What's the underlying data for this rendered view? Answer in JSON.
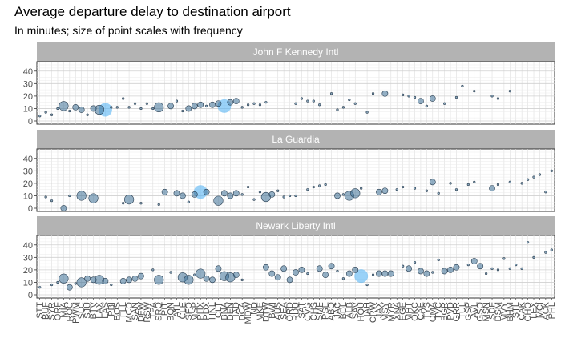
{
  "chart_data": {
    "type": "scatter",
    "title": "Average departure delay to destination airport",
    "subtitle": "In minutes; size of point scales with frequency",
    "xlabel": "",
    "ylabel": "",
    "ylim": [
      0,
      45
    ],
    "y_ticks": [
      0,
      10,
      20,
      30,
      40
    ],
    "grid": true,
    "categories": [
      "STT",
      "BUF",
      "SYR",
      "ORF",
      "MIA",
      "ROC",
      "PWM",
      "SLC",
      "SJU",
      "BTV",
      "LAX",
      "LAS",
      "PBI",
      "BOS",
      "FLL",
      "MCO",
      "SAN",
      "DFW",
      "RSW",
      "TPA",
      "SRQ",
      "PIT",
      "BQN",
      "ATL",
      "CLE",
      "SFO",
      "MSP",
      "PHX",
      "PDX",
      "HNL",
      "CLT",
      "BNA",
      "DEN",
      "IAD",
      "DCA",
      "MDW",
      "IND",
      "MKE",
      "DTW",
      "BWI",
      "AUS",
      "SEA",
      "ORD",
      "RDU",
      "SAT",
      "CVG",
      "CHS",
      "SMF",
      "PSE",
      "ABQ",
      "JAC",
      "BDL",
      "ALB",
      "SAV",
      "HOU",
      "IAH",
      "CRW",
      "JAX",
      "MSY",
      "MYR",
      "XNA",
      "EGE",
      "MHT",
      "OKC",
      "CAE",
      "TYS",
      "OMA",
      "TVC",
      "BGR",
      "PVD",
      "GRR",
      "TUL",
      "GSP",
      "AVL",
      "GSO",
      "MSN",
      "SDF",
      "DSM",
      "MVY",
      "BHM",
      "STL",
      "CAK",
      "CHO",
      "LEX",
      "MCI",
      "ACK",
      "PHL"
    ],
    "series": [
      {
        "name": "John F Kennedy Intl",
        "points": [
          {
            "x": "STT",
            "y": 4,
            "n": 1
          },
          {
            "x": "BUF",
            "y": 7,
            "n": 1
          },
          {
            "x": "SYR",
            "y": 5,
            "n": 1
          },
          {
            "x": "ROC",
            "y": 8,
            "n": 1
          },
          {
            "x": "MIA",
            "y": 12,
            "n": 3
          },
          {
            "x": "ORF",
            "y": 10,
            "n": 1
          },
          {
            "x": "PWM",
            "y": 11,
            "n": 2
          },
          {
            "x": "SLC",
            "y": 9,
            "n": 2
          },
          {
            "x": "SJU",
            "y": 5,
            "n": 1
          },
          {
            "x": "BTV",
            "y": 10,
            "n": 2
          },
          {
            "x": "LAX",
            "y": 9,
            "n": 3
          },
          {
            "x": "LAS",
            "y": 9,
            "n": 4
          },
          {
            "x": "PBI",
            "y": 11,
            "n": 1
          },
          {
            "x": "BOS",
            "y": 11,
            "n": 1
          },
          {
            "x": "FLL",
            "y": 18,
            "n": 1
          },
          {
            "x": "MCO",
            "y": 11,
            "n": 1
          },
          {
            "x": "SAN",
            "y": 14,
            "n": 1
          },
          {
            "x": "DFW",
            "y": 10,
            "n": 1
          },
          {
            "x": "RSW",
            "y": 14,
            "n": 1
          },
          {
            "x": "TPA",
            "y": 10,
            "n": 1
          },
          {
            "x": "SRQ",
            "y": 11,
            "n": 3
          },
          {
            "x": "BQN",
            "y": 12,
            "n": 2
          },
          {
            "x": "ATL",
            "y": 16,
            "n": 1
          },
          {
            "x": "CLE",
            "y": 8,
            "n": 1
          },
          {
            "x": "SFO",
            "y": 10,
            "n": 2
          },
          {
            "x": "MSP",
            "y": 12,
            "n": 2
          },
          {
            "x": "PHX",
            "y": 13,
            "n": 2
          },
          {
            "x": "PDX",
            "y": 12,
            "n": 1
          },
          {
            "x": "HNL",
            "y": 13,
            "n": 2
          },
          {
            "x": "CLT",
            "y": 14,
            "n": 2
          },
          {
            "x": "BNA",
            "y": 12,
            "n": 4
          },
          {
            "x": "DEN",
            "y": 15,
            "n": 2
          },
          {
            "x": "IAD",
            "y": 16,
            "n": 2
          },
          {
            "x": "DCA",
            "y": 11,
            "n": 1
          },
          {
            "x": "MDW",
            "y": 13,
            "n": 1
          },
          {
            "x": "IND",
            "y": 14,
            "n": 1
          },
          {
            "x": "MKE",
            "y": 13,
            "n": 1
          },
          {
            "x": "DTW",
            "y": 15,
            "n": 1
          },
          {
            "x": "RDU",
            "y": 14,
            "n": 1
          },
          {
            "x": "SAT",
            "y": 18,
            "n": 1
          },
          {
            "x": "CVG",
            "y": 16,
            "n": 1
          },
          {
            "x": "CHS",
            "y": 16,
            "n": 1
          },
          {
            "x": "SMF",
            "y": 13,
            "n": 1
          },
          {
            "x": "ABQ",
            "y": 22,
            "n": 1
          },
          {
            "x": "BDL",
            "y": 11,
            "n": 1
          },
          {
            "x": "JAC",
            "y": 9,
            "n": 1
          },
          {
            "x": "SAV",
            "y": 14,
            "n": 1
          },
          {
            "x": "ALB",
            "y": 17,
            "n": 1
          },
          {
            "x": "IAH",
            "y": 7,
            "n": 1
          },
          {
            "x": "CRW",
            "y": 22,
            "n": 1
          },
          {
            "x": "MSY",
            "y": 22,
            "n": 2
          },
          {
            "x": "EGE",
            "y": 21,
            "n": 1
          },
          {
            "x": "MHT",
            "y": 20,
            "n": 1
          },
          {
            "x": "OKC",
            "y": 19,
            "n": 1
          },
          {
            "x": "CAE",
            "y": 16,
            "n": 2
          },
          {
            "x": "TYS",
            "y": 12,
            "n": 1
          },
          {
            "x": "OMA",
            "y": 18,
            "n": 2
          },
          {
            "x": "BGR",
            "y": 14,
            "n": 1
          },
          {
            "x": "GRR",
            "y": 19,
            "n": 1
          },
          {
            "x": "TUL",
            "y": 28,
            "n": 1
          },
          {
            "x": "AVL",
            "y": 24,
            "n": 1
          },
          {
            "x": "SDF",
            "y": 20,
            "n": 1
          },
          {
            "x": "DSM",
            "y": 18,
            "n": 1
          },
          {
            "x": "BHM",
            "y": 24,
            "n": 1
          }
        ]
      },
      {
        "name": "La Guardia",
        "points": [
          {
            "x": "BUF",
            "y": 9,
            "n": 1
          },
          {
            "x": "SYR",
            "y": 6,
            "n": 1
          },
          {
            "x": "MIA",
            "y": 0,
            "n": 2
          },
          {
            "x": "ROC",
            "y": 10,
            "n": 1
          },
          {
            "x": "SLC",
            "y": 10,
            "n": 3
          },
          {
            "x": "BTV",
            "y": 8,
            "n": 3
          },
          {
            "x": "FLL",
            "y": 4,
            "n": 1
          },
          {
            "x": "MCO",
            "y": 7,
            "n": 3
          },
          {
            "x": "DFW",
            "y": 4,
            "n": 1
          },
          {
            "x": "SRQ",
            "y": 3,
            "n": 1
          },
          {
            "x": "PIT",
            "y": 13,
            "n": 2
          },
          {
            "x": "ATL",
            "y": 12,
            "n": 2
          },
          {
            "x": "CLE",
            "y": 10,
            "n": 2
          },
          {
            "x": "SFO",
            "y": 5,
            "n": 1
          },
          {
            "x": "MSP",
            "y": 11,
            "n": 2
          },
          {
            "x": "PHX",
            "y": 13,
            "n": 4
          },
          {
            "x": "PDX",
            "y": 13,
            "n": 2
          },
          {
            "x": "CLT",
            "y": 6,
            "n": 3
          },
          {
            "x": "BNA",
            "y": 12,
            "n": 2
          },
          {
            "x": "DEN",
            "y": 10,
            "n": 2
          },
          {
            "x": "IAD",
            "y": 12,
            "n": 2
          },
          {
            "x": "DCA",
            "y": 11,
            "n": 1
          },
          {
            "x": "MDW",
            "y": 17,
            "n": 1
          },
          {
            "x": "IND",
            "y": 7,
            "n": 1
          },
          {
            "x": "MKE",
            "y": 13,
            "n": 1
          },
          {
            "x": "DTW",
            "y": 9,
            "n": 3
          },
          {
            "x": "BWI",
            "y": 11,
            "n": 2
          },
          {
            "x": "AUS",
            "y": 14,
            "n": 1
          },
          {
            "x": "SEA",
            "y": 9,
            "n": 1
          },
          {
            "x": "ORD",
            "y": 10,
            "n": 1
          },
          {
            "x": "RDU",
            "y": 10,
            "n": 1
          },
          {
            "x": "CVG",
            "y": 15,
            "n": 1
          },
          {
            "x": "CHS",
            "y": 17,
            "n": 1
          },
          {
            "x": "SMF",
            "y": 18,
            "n": 1
          },
          {
            "x": "PSE",
            "y": 19,
            "n": 1
          },
          {
            "x": "JAC",
            "y": 10,
            "n": 2
          },
          {
            "x": "BDL",
            "y": 11,
            "n": 1
          },
          {
            "x": "ALB",
            "y": 10,
            "n": 3
          },
          {
            "x": "SAV",
            "y": 12,
            "n": 3
          },
          {
            "x": "HOU",
            "y": 16,
            "n": 1
          },
          {
            "x": "JAX",
            "y": 13,
            "n": 2
          },
          {
            "x": "MSY",
            "y": 14,
            "n": 2
          },
          {
            "x": "XNA",
            "y": 15,
            "n": 1
          },
          {
            "x": "EGE",
            "y": 17,
            "n": 1
          },
          {
            "x": "OKC",
            "y": 16,
            "n": 1
          },
          {
            "x": "TYS",
            "y": 14,
            "n": 1
          },
          {
            "x": "OMA",
            "y": 21,
            "n": 2
          },
          {
            "x": "TVC",
            "y": 12,
            "n": 1
          },
          {
            "x": "PVD",
            "y": 20,
            "n": 1
          },
          {
            "x": "GRR",
            "y": 15,
            "n": 1
          },
          {
            "x": "GSP",
            "y": 19,
            "n": 1
          },
          {
            "x": "AVL",
            "y": 21,
            "n": 1
          },
          {
            "x": "SDF",
            "y": 16,
            "n": 2
          },
          {
            "x": "DSM",
            "y": 19,
            "n": 1
          },
          {
            "x": "BHM",
            "y": 21,
            "n": 1
          },
          {
            "x": "CAK",
            "y": 20,
            "n": 1
          },
          {
            "x": "CHO",
            "y": 23,
            "n": 1
          },
          {
            "x": "LEX",
            "y": 25,
            "n": 1
          },
          {
            "x": "MCI",
            "y": 27,
            "n": 1
          },
          {
            "x": "ACK",
            "y": 13,
            "n": 1
          },
          {
            "x": "PHL",
            "y": 30,
            "n": 1
          }
        ]
      },
      {
        "name": "Newark Liberty Intl",
        "points": [
          {
            "x": "STT",
            "y": 6,
            "n": 1
          },
          {
            "x": "SYR",
            "y": 8,
            "n": 1
          },
          {
            "x": "ORF",
            "y": 10,
            "n": 1
          },
          {
            "x": "MIA",
            "y": 13,
            "n": 3
          },
          {
            "x": "ROC",
            "y": 6,
            "n": 2
          },
          {
            "x": "PWM",
            "y": 9,
            "n": 1
          },
          {
            "x": "SLC",
            "y": 10,
            "n": 3
          },
          {
            "x": "SJU",
            "y": 13,
            "n": 2
          },
          {
            "x": "BTV",
            "y": 12,
            "n": 2
          },
          {
            "x": "LAX",
            "y": 12,
            "n": 3
          },
          {
            "x": "LAS",
            "y": 11,
            "n": 2
          },
          {
            "x": "PBI",
            "y": 8,
            "n": 1
          },
          {
            "x": "FLL",
            "y": 11,
            "n": 2
          },
          {
            "x": "MCO",
            "y": 12,
            "n": 2
          },
          {
            "x": "SAN",
            "y": 13,
            "n": 2
          },
          {
            "x": "DFW",
            "y": 15,
            "n": 2
          },
          {
            "x": "TPA",
            "y": 20,
            "n": 1
          },
          {
            "x": "SRQ",
            "y": 12,
            "n": 3
          },
          {
            "x": "BQN",
            "y": 18,
            "n": 1
          },
          {
            "x": "CLE",
            "y": 14,
            "n": 3
          },
          {
            "x": "SFO",
            "y": 12,
            "n": 3
          },
          {
            "x": "MSP",
            "y": 16,
            "n": 1
          },
          {
            "x": "PHX",
            "y": 17,
            "n": 3
          },
          {
            "x": "PDX",
            "y": 13,
            "n": 2
          },
          {
            "x": "HNL",
            "y": 12,
            "n": 2
          },
          {
            "x": "CLT",
            "y": 21,
            "n": 2
          },
          {
            "x": "BNA",
            "y": 15,
            "n": 3
          },
          {
            "x": "DEN",
            "y": 14,
            "n": 3
          },
          {
            "x": "IAD",
            "y": 16,
            "n": 2
          },
          {
            "x": "DCA",
            "y": 12,
            "n": 1
          },
          {
            "x": "DTW",
            "y": 22,
            "n": 2
          },
          {
            "x": "BWI",
            "y": 17,
            "n": 2
          },
          {
            "x": "AUS",
            "y": 14,
            "n": 2
          },
          {
            "x": "SEA",
            "y": 21,
            "n": 2
          },
          {
            "x": "ORD",
            "y": 12,
            "n": 2
          },
          {
            "x": "RDU",
            "y": 18,
            "n": 2
          },
          {
            "x": "SAT",
            "y": 20,
            "n": 2
          },
          {
            "x": "CVG",
            "y": 17,
            "n": 1
          },
          {
            "x": "SMF",
            "y": 21,
            "n": 2
          },
          {
            "x": "PSE",
            "y": 16,
            "n": 2
          },
          {
            "x": "ABQ",
            "y": 23,
            "n": 2
          },
          {
            "x": "JAC",
            "y": 19,
            "n": 1
          },
          {
            "x": "BDL",
            "y": 13,
            "n": 1
          },
          {
            "x": "ALB",
            "y": 17,
            "n": 2
          },
          {
            "x": "SAV",
            "y": 20,
            "n": 2
          },
          {
            "x": "HOU",
            "y": 15,
            "n": 4
          },
          {
            "x": "IAH",
            "y": 8,
            "n": 1
          },
          {
            "x": "CRW",
            "y": 16,
            "n": 1
          },
          {
            "x": "JAX",
            "y": 17,
            "n": 2
          },
          {
            "x": "MSY",
            "y": 17,
            "n": 2
          },
          {
            "x": "MYR",
            "y": 17,
            "n": 2
          },
          {
            "x": "EGE",
            "y": 23,
            "n": 1
          },
          {
            "x": "MHT",
            "y": 21,
            "n": 2
          },
          {
            "x": "OKC",
            "y": 26,
            "n": 1
          },
          {
            "x": "CAE",
            "y": 19,
            "n": 2
          },
          {
            "x": "TYS",
            "y": 17,
            "n": 2
          },
          {
            "x": "OMA",
            "y": 18,
            "n": 1
          },
          {
            "x": "TVC",
            "y": 28,
            "n": 1
          },
          {
            "x": "BGR",
            "y": 19,
            "n": 2
          },
          {
            "x": "PVD",
            "y": 20,
            "n": 2
          },
          {
            "x": "GRR",
            "y": 22,
            "n": 2
          },
          {
            "x": "GSP",
            "y": 24,
            "n": 1
          },
          {
            "x": "AVL",
            "y": 27,
            "n": 2
          },
          {
            "x": "GSO",
            "y": 23,
            "n": 2
          },
          {
            "x": "MSN",
            "y": 17,
            "n": 1
          },
          {
            "x": "SDF",
            "y": 21,
            "n": 1
          },
          {
            "x": "DSM",
            "y": 20,
            "n": 1
          },
          {
            "x": "MVY",
            "y": 29,
            "n": 1
          },
          {
            "x": "BHM",
            "y": 21,
            "n": 1
          },
          {
            "x": "STL",
            "y": 24,
            "n": 1
          },
          {
            "x": "CAK",
            "y": 21,
            "n": 1
          },
          {
            "x": "CHO",
            "y": 42,
            "n": 1
          },
          {
            "x": "LEX",
            "y": 30,
            "n": 1
          },
          {
            "x": "ACK",
            "y": 34,
            "n": 1
          },
          {
            "x": "PHL",
            "y": 36,
            "n": 1
          }
        ]
      }
    ],
    "legend": "none"
  }
}
